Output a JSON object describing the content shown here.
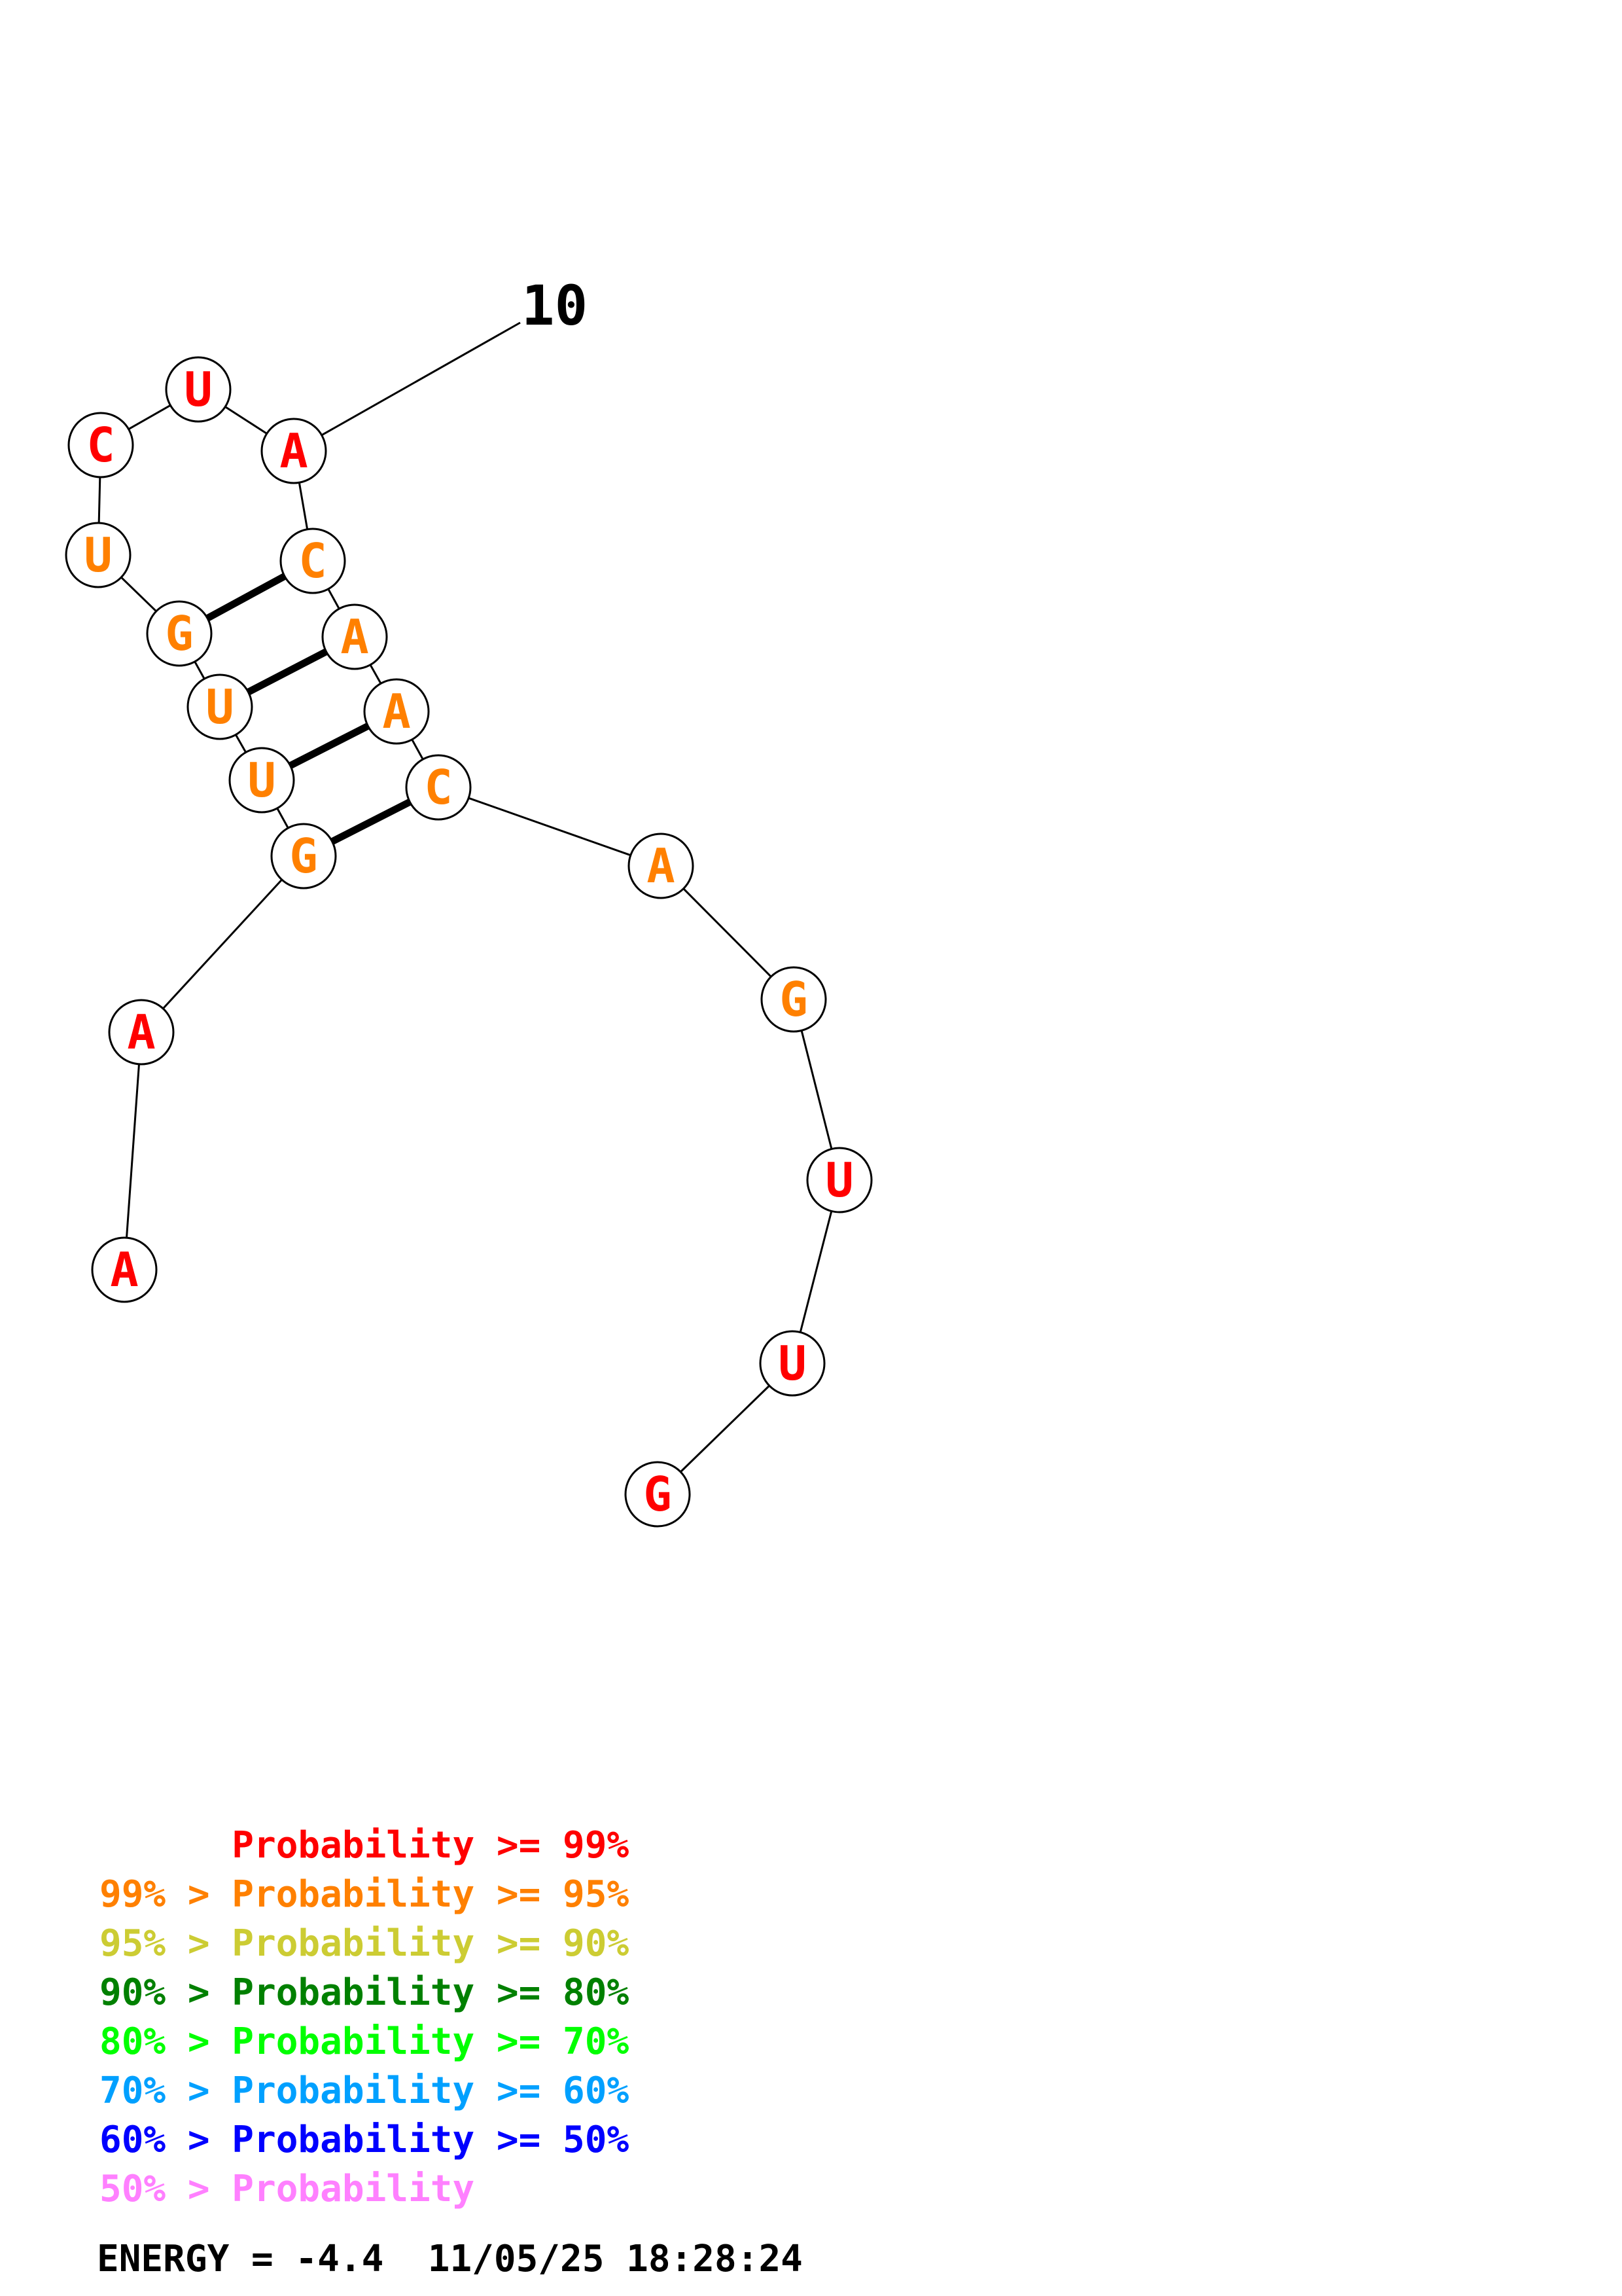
{
  "rna_structure": {
    "sequence": "AAGUUGUCUACAACAGUUG",
    "index_marker": {
      "position": 10,
      "label": "10"
    },
    "bases": [
      {
        "index": 1,
        "letter": "A",
        "probability_class": "red"
      },
      {
        "index": 2,
        "letter": "A",
        "probability_class": "red"
      },
      {
        "index": 3,
        "letter": "G",
        "probability_class": "orange"
      },
      {
        "index": 4,
        "letter": "U",
        "probability_class": "orange"
      },
      {
        "index": 5,
        "letter": "U",
        "probability_class": "orange"
      },
      {
        "index": 6,
        "letter": "G",
        "probability_class": "orange"
      },
      {
        "index": 7,
        "letter": "U",
        "probability_class": "orange"
      },
      {
        "index": 8,
        "letter": "C",
        "probability_class": "red"
      },
      {
        "index": 9,
        "letter": "U",
        "probability_class": "red"
      },
      {
        "index": 10,
        "letter": "A",
        "probability_class": "red"
      },
      {
        "index": 11,
        "letter": "C",
        "probability_class": "orange"
      },
      {
        "index": 12,
        "letter": "A",
        "probability_class": "orange"
      },
      {
        "index": 13,
        "letter": "A",
        "probability_class": "orange"
      },
      {
        "index": 14,
        "letter": "C",
        "probability_class": "orange"
      },
      {
        "index": 15,
        "letter": "A",
        "probability_class": "orange"
      },
      {
        "index": 16,
        "letter": "G",
        "probability_class": "orange"
      },
      {
        "index": 17,
        "letter": "U",
        "probability_class": "red"
      },
      {
        "index": 18,
        "letter": "U",
        "probability_class": "red"
      },
      {
        "index": 19,
        "letter": "G",
        "probability_class": "red"
      }
    ],
    "base_pairs": [
      [
        3,
        14
      ],
      [
        4,
        13
      ],
      [
        5,
        12
      ],
      [
        6,
        11
      ]
    ]
  },
  "colors": {
    "red": "#ff0000",
    "orange": "#ff8000",
    "yellow": "#cccc33",
    "darkgreen": "#008000",
    "green": "#00ff00",
    "lightblue": "#00a0ff",
    "blue": "#0000ff",
    "pink": "#ff80ff"
  },
  "legend": [
    {
      "text": "      Probability >= 99%",
      "color": "red"
    },
    {
      "text": "99% > Probability >= 95%",
      "color": "orange"
    },
    {
      "text": "95% > Probability >= 90%",
      "color": "yellow"
    },
    {
      "text": "90% > Probability >= 80%",
      "color": "darkgreen"
    },
    {
      "text": "80% > Probability >= 70%",
      "color": "green"
    },
    {
      "text": "70% > Probability >= 60%",
      "color": "lightblue"
    },
    {
      "text": "60% > Probability >= 50%",
      "color": "blue"
    },
    {
      "text": "50% > Probability",
      "color": "pink"
    }
  ],
  "energy_line": "ENERGY = -4.4  11/05/25 18:28:24"
}
